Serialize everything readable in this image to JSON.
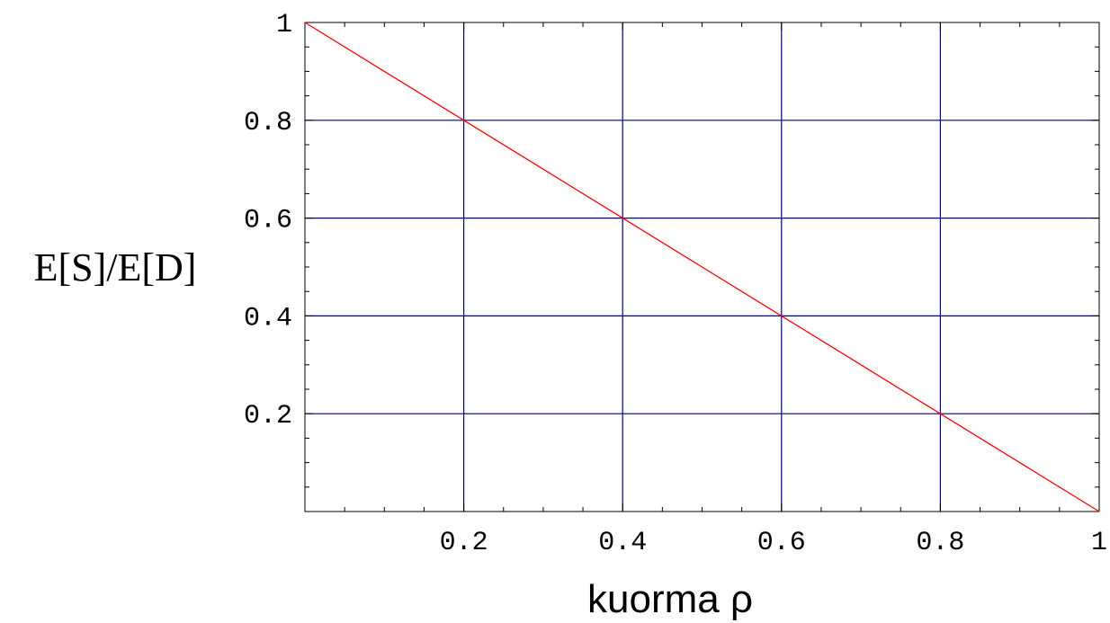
{
  "chart_data": {
    "type": "line",
    "xlabel": "kuorma ρ",
    "ylabel": "E[S]/E[D]",
    "xlim": [
      0,
      1
    ],
    "ylim": [
      0,
      1
    ],
    "grid": true,
    "x_ticks": [
      0.2,
      0.4,
      0.6,
      0.8,
      1
    ],
    "x_tick_labels": [
      "0.2",
      "0.4",
      "0.6",
      "0.8",
      "1"
    ],
    "y_ticks": [
      0.2,
      0.4,
      0.6,
      0.8,
      1
    ],
    "y_tick_labels": [
      "0.2",
      "0.4",
      "0.6",
      "0.8",
      "1"
    ],
    "series": [
      {
        "x": [
          0,
          0.1,
          0.2,
          0.3,
          0.4,
          0.5,
          0.6,
          0.7,
          0.8,
          0.9,
          1
        ],
        "y": [
          1,
          0.9,
          0.8,
          0.7,
          0.6,
          0.5,
          0.4,
          0.3,
          0.2,
          0.1,
          0
        ]
      }
    ],
    "colors": {
      "line": "#ff0000",
      "grid": "#000080",
      "frame": "#000000"
    }
  }
}
